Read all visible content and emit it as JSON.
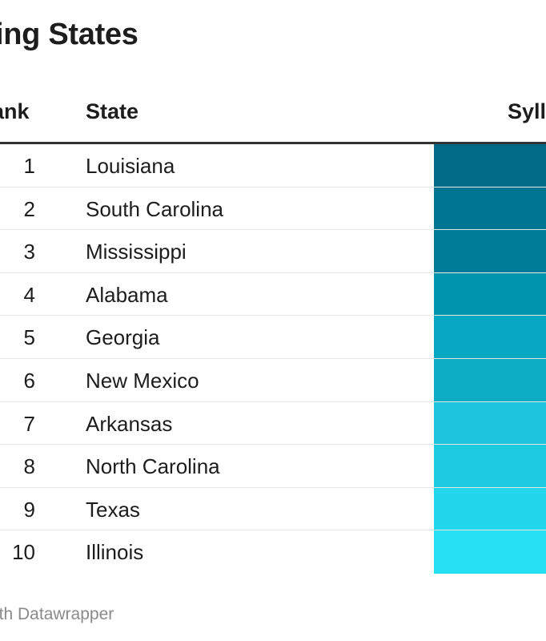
{
  "title": "ing States",
  "header": {
    "rank": "ank",
    "state": "State",
    "value": "Syll"
  },
  "footer": "ith Datawrapper",
  "chart_data": {
    "type": "table",
    "title": "ing States",
    "columns": [
      "ank",
      "State",
      "Syll"
    ],
    "rows": [
      {
        "rank": "1",
        "state": "Louisiana",
        "color": "#006a87"
      },
      {
        "rank": "2",
        "state": "South Carolina",
        "color": "#007591"
      },
      {
        "rank": "3",
        "state": "Mississippi",
        "color": "#007c98"
      },
      {
        "rank": "4",
        "state": "Alabama",
        "color": "#0094ad"
      },
      {
        "rank": "5",
        "state": "Georgia",
        "color": "#07a6c1"
      },
      {
        "rank": "6",
        "state": "New Mexico",
        "color": "#0dadc6"
      },
      {
        "rank": "7",
        "state": "Arkansas",
        "color": "#1ec4dc"
      },
      {
        "rank": "8",
        "state": "North Carolina",
        "color": "#1ecae0"
      },
      {
        "rank": "9",
        "state": "Texas",
        "color": "#22d7ec"
      },
      {
        "rank": "10",
        "state": "Illinois",
        "color": "#28e0f4"
      }
    ]
  }
}
